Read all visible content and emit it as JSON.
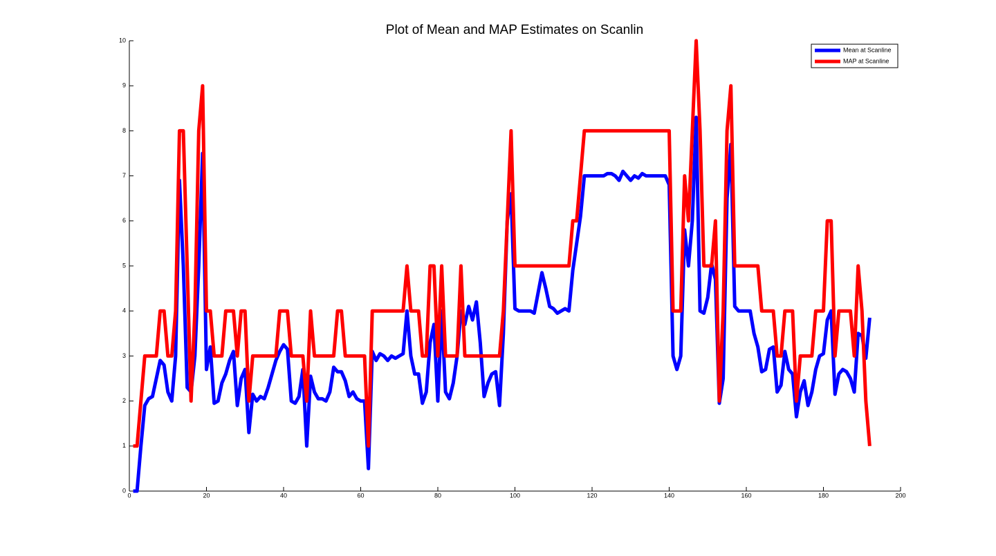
{
  "chart_data": {
    "type": "line",
    "title": "Plot of Mean and MAP Estimates on Scanlin",
    "x": [
      1,
      2,
      3,
      4,
      5,
      6,
      7,
      8,
      9,
      10,
      11,
      12,
      13,
      14,
      15,
      16,
      17,
      18,
      19,
      20,
      21,
      22,
      23,
      24,
      25,
      26,
      27,
      28,
      29,
      30,
      31,
      32,
      33,
      34,
      35,
      36,
      37,
      38,
      39,
      40,
      41,
      42,
      43,
      44,
      45,
      46,
      47,
      48,
      49,
      50,
      51,
      52,
      53,
      54,
      55,
      56,
      57,
      58,
      59,
      60,
      61,
      62,
      63,
      64,
      65,
      66,
      67,
      68,
      69,
      70,
      71,
      72,
      73,
      74,
      75,
      76,
      77,
      78,
      79,
      80,
      81,
      82,
      83,
      84,
      85,
      86,
      87,
      88,
      89,
      90,
      91,
      92,
      93,
      94,
      95,
      96,
      97,
      98,
      99,
      100,
      101,
      102,
      103,
      104,
      105,
      106,
      107,
      108,
      109,
      110,
      111,
      112,
      113,
      114,
      115,
      116,
      117,
      118,
      119,
      120,
      121,
      122,
      123,
      124,
      125,
      126,
      127,
      128,
      129,
      130,
      131,
      132,
      133,
      134,
      135,
      136,
      137,
      138,
      139,
      140,
      141,
      142,
      143,
      144,
      145,
      146,
      147,
      148,
      149,
      150,
      151,
      152,
      153,
      154,
      155,
      156,
      157,
      158,
      159,
      160,
      161,
      162,
      163,
      164,
      165,
      166,
      167,
      168,
      169,
      170,
      171,
      172,
      173,
      174,
      175,
      176,
      177,
      178,
      179,
      180,
      181,
      182,
      183,
      184,
      185,
      186,
      187,
      188,
      189,
      190,
      191,
      192
    ],
    "series": [
      {
        "name": "Mean at Scanline",
        "color": "#0000ff",
        "values": [
          0,
          0,
          1,
          1.9,
          2.05,
          2.1,
          2.5,
          2.9,
          2.8,
          2.2,
          2,
          3,
          6.9,
          5,
          2.3,
          2.2,
          3,
          5,
          7.5,
          2.7,
          3.2,
          1.95,
          2,
          2.4,
          2.6,
          2.9,
          3.1,
          1.9,
          2.5,
          2.7,
          1.3,
          2.15,
          2,
          2.1,
          2.05,
          2.3,
          2.6,
          2.9,
          3.1,
          3.25,
          3.15,
          2,
          1.95,
          2.1,
          2.7,
          1,
          2.55,
          2.2,
          2.05,
          2.05,
          2,
          2.2,
          2.75,
          2.65,
          2.65,
          2.45,
          2.1,
          2.2,
          2.05,
          2,
          2,
          0.5,
          3.1,
          2.9,
          3.05,
          3,
          2.9,
          3,
          2.95,
          3,
          3.05,
          4,
          3,
          2.6,
          2.6,
          1.95,
          2.2,
          3.3,
          3.7,
          2,
          4,
          2.2,
          2.05,
          2.4,
          3,
          4,
          3.7,
          4.1,
          3.8,
          4.2,
          3.3,
          2.1,
          2.4,
          2.6,
          2.65,
          1.9,
          3.5,
          6,
          6.6,
          4.05,
          4,
          4,
          4,
          4,
          3.95,
          4.4,
          4.85,
          4.5,
          4.1,
          4.05,
          3.95,
          4,
          4.05,
          4,
          4.9,
          5.5,
          6.1,
          7,
          7,
          7,
          7,
          7,
          7,
          7.05,
          7.05,
          7,
          6.9,
          7.1,
          7,
          6.9,
          7,
          6.95,
          7.05,
          7,
          7,
          7,
          7,
          7,
          7,
          6.8,
          3,
          2.7,
          3,
          5.8,
          5,
          6,
          8.3,
          4,
          3.95,
          4.3,
          5.05,
          4.7,
          1.95,
          2.5,
          6.5,
          7.7,
          4.1,
          4,
          4,
          4,
          4,
          3.5,
          3.2,
          2.65,
          2.7,
          3.15,
          3.2,
          2.2,
          2.35,
          3.1,
          2.7,
          2.6,
          1.65,
          2.2,
          2.45,
          1.9,
          2.2,
          2.7,
          3,
          3.05,
          3.8,
          4,
          2.15,
          2.6,
          2.7,
          2.65,
          2.5,
          2.2,
          3.5,
          3.45,
          2.95,
          3.85
        ]
      },
      {
        "name": "MAP at Scanline",
        "color": "#ff0000",
        "values": [
          1,
          1,
          2,
          3,
          3,
          3,
          3,
          4,
          4,
          3,
          3,
          4,
          8,
          8,
          5,
          2,
          4,
          8,
          9,
          4,
          4,
          3,
          3,
          3,
          4,
          4,
          4,
          3,
          4,
          4,
          2,
          3,
          3,
          3,
          3,
          3,
          3,
          3,
          4,
          4,
          4,
          3,
          3,
          3,
          3,
          2,
          4,
          3,
          3,
          3,
          3,
          3,
          3,
          4,
          4,
          3,
          3,
          3,
          3,
          3,
          3,
          1,
          4,
          4,
          4,
          4,
          4,
          4,
          4,
          4,
          4,
          5,
          4,
          4,
          4,
          3,
          3,
          5,
          5,
          3,
          5,
          3,
          3,
          3,
          3,
          5,
          3,
          3,
          3,
          3,
          3,
          3,
          3,
          3,
          3,
          3,
          4,
          6,
          8,
          5,
          5,
          5,
          5,
          5,
          5,
          5,
          5,
          5,
          5,
          5,
          5,
          5,
          5,
          5,
          6,
          6,
          7,
          8,
          8,
          8,
          8,
          8,
          8,
          8,
          8,
          8,
          8,
          8,
          8,
          8,
          8,
          8,
          8,
          8,
          8,
          8,
          8,
          8,
          8,
          8,
          4,
          4,
          4,
          7,
          6,
          8,
          10,
          8,
          5,
          5,
          5,
          6,
          2,
          4,
          8,
          9,
          5,
          5,
          5,
          5,
          5,
          5,
          5,
          4,
          4,
          4,
          4,
          3,
          3,
          4,
          4,
          4,
          2,
          3,
          3,
          3,
          3,
          4,
          4,
          4,
          6,
          6,
          3,
          4,
          4,
          4,
          4,
          3,
          5,
          4,
          2,
          1
        ]
      }
    ],
    "xlim": [
      0,
      200
    ],
    "xticks": [
      0,
      20,
      40,
      60,
      80,
      100,
      120,
      140,
      160,
      180,
      200
    ],
    "ylim": [
      0,
      10
    ],
    "yticks": [
      0,
      1,
      2,
      3,
      4,
      5,
      6,
      7,
      8,
      9,
      10
    ],
    "legend": "upper right"
  }
}
